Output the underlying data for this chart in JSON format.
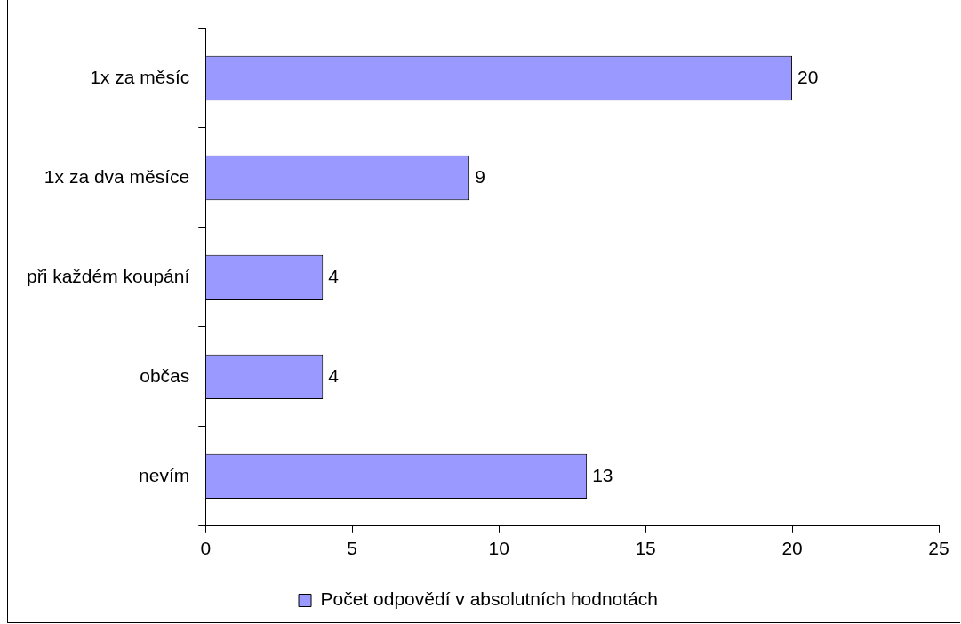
{
  "chart_data": {
    "type": "bar",
    "orientation": "horizontal",
    "categories": [
      "1x za měsíc",
      "1x za dva měsíce",
      "při každém koupání",
      "občas",
      "nevím"
    ],
    "series": [
      {
        "name": "Počet odpovědí v absolutních hodnotách",
        "color": "#9999ff",
        "values": [
          20,
          9,
          4,
          4,
          13
        ]
      }
    ],
    "xlim": [
      0,
      25
    ],
    "xticks": [
      0,
      5,
      10,
      15,
      20,
      25
    ],
    "grid": false,
    "legend": "bottom",
    "data_labels": true
  }
}
